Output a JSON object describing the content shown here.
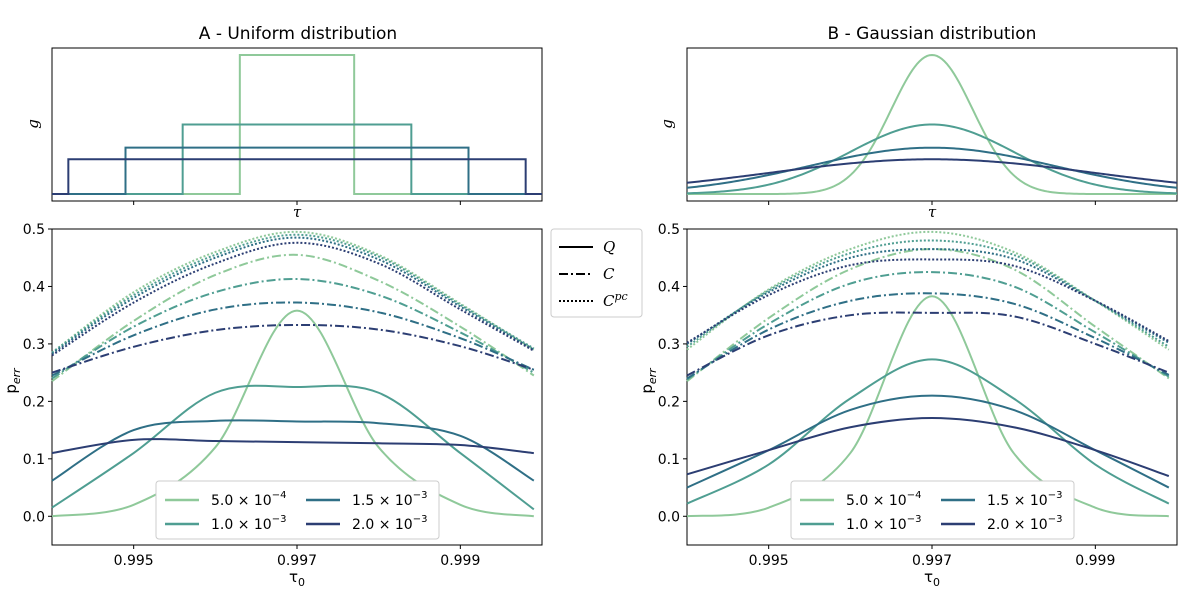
{
  "colors": {
    "w1": "#8fc99a",
    "w2": "#4f9e92",
    "w3": "#2f6f86",
    "w4": "#2c3e73"
  },
  "chart_data": [
    {
      "id": "A-top",
      "type": "line",
      "title": "A - Uniform distribution",
      "xlabel": "τ",
      "ylabel": "g",
      "xlim": [
        0.994,
        1.0
      ],
      "series": [
        {
          "name": "5.0e-4",
          "color_key": "w1",
          "shape": "uniform",
          "halfwidth": 0.0007,
          "height": 1.0
        },
        {
          "name": "1.0e-3",
          "color_key": "w2",
          "shape": "uniform",
          "halfwidth": 0.0014,
          "height": 0.5
        },
        {
          "name": "1.5e-3",
          "color_key": "w3",
          "shape": "uniform",
          "halfwidth": 0.0021,
          "height": 0.3333
        },
        {
          "name": "2.0e-3",
          "color_key": "w4",
          "shape": "uniform",
          "halfwidth": 0.0028,
          "height": 0.25
        }
      ]
    },
    {
      "id": "B-top",
      "type": "line",
      "title": "B - Gaussian distribution",
      "xlabel": "τ",
      "ylabel": "g",
      "xlim": [
        0.994,
        1.0
      ],
      "series": [
        {
          "name": "5.0e-4",
          "color_key": "w1",
          "shape": "gauss",
          "sigma": 0.0005,
          "height": 1.0
        },
        {
          "name": "1.0e-3",
          "color_key": "w2",
          "shape": "gauss",
          "sigma": 0.001,
          "height": 0.5
        },
        {
          "name": "1.5e-3",
          "color_key": "w3",
          "shape": "gauss",
          "sigma": 0.0015,
          "height": 0.3333
        },
        {
          "name": "2.0e-3",
          "color_key": "w4",
          "shape": "gauss",
          "sigma": 0.002,
          "height": 0.25
        }
      ]
    },
    {
      "id": "A-bottom",
      "type": "line",
      "xlabel": "τ₀",
      "ylabel": "p_err",
      "xlim": [
        0.994,
        1.0
      ],
      "ylim": [
        -0.05,
        0.5
      ],
      "xticks": [
        0.995,
        0.997,
        0.999
      ],
      "xtick_labels": [
        "0.995",
        "0.997",
        "0.999"
      ],
      "yticks": [
        0.0,
        0.1,
        0.2,
        0.3,
        0.4,
        0.5
      ],
      "ytick_labels": [
        "0.0",
        "0.1",
        "0.2",
        "0.3",
        "0.4",
        "0.5"
      ],
      "x": [
        0.994,
        0.995,
        0.996,
        0.997,
        0.998,
        0.999,
        0.9999
      ],
      "series": [
        {
          "name": "Q 5.0e-4",
          "color_key": "w1",
          "style": "solid",
          "values": [
            0.0,
            0.02,
            0.12,
            0.358,
            0.12,
            0.02,
            0.0
          ]
        },
        {
          "name": "Q 1.0e-3",
          "color_key": "w2",
          "style": "solid",
          "values": [
            0.015,
            0.11,
            0.215,
            0.225,
            0.215,
            0.11,
            0.012
          ]
        },
        {
          "name": "Q 1.5e-3",
          "color_key": "w3",
          "style": "solid",
          "values": [
            0.062,
            0.15,
            0.166,
            0.165,
            0.162,
            0.14,
            0.062
          ]
        },
        {
          "name": "Q 2.0e-3",
          "color_key": "w4",
          "style": "solid",
          "values": [
            0.11,
            0.133,
            0.131,
            0.129,
            0.127,
            0.124,
            0.11
          ]
        },
        {
          "name": "C 5.0e-4",
          "color_key": "w1",
          "style": "dashdot",
          "values": [
            0.235,
            0.34,
            0.42,
            0.455,
            0.41,
            0.33,
            0.245
          ]
        },
        {
          "name": "C 1.0e-3",
          "color_key": "w2",
          "style": "dashdot",
          "values": [
            0.24,
            0.33,
            0.39,
            0.413,
            0.385,
            0.32,
            0.25
          ]
        },
        {
          "name": "C 1.5e-3",
          "color_key": "w3",
          "style": "dashdot",
          "values": [
            0.245,
            0.315,
            0.36,
            0.372,
            0.355,
            0.31,
            0.255
          ]
        },
        {
          "name": "C 2.0e-3",
          "color_key": "w4",
          "style": "dashdot",
          "values": [
            0.25,
            0.295,
            0.324,
            0.333,
            0.325,
            0.296,
            0.255
          ]
        },
        {
          "name": "Cpc 5.0e-4",
          "color_key": "w1",
          "style": "dotted",
          "values": [
            0.285,
            0.39,
            0.46,
            0.495,
            0.455,
            0.37,
            0.29
          ]
        },
        {
          "name": "Cpc 1.0e-3",
          "color_key": "w2",
          "style": "dotted",
          "values": [
            0.285,
            0.385,
            0.455,
            0.49,
            0.452,
            0.368,
            0.292
          ]
        },
        {
          "name": "Cpc 1.5e-3",
          "color_key": "w3",
          "style": "dotted",
          "values": [
            0.283,
            0.38,
            0.45,
            0.485,
            0.447,
            0.365,
            0.29
          ]
        },
        {
          "name": "Cpc 2.0e-3",
          "color_key": "w4",
          "style": "dotted",
          "values": [
            0.28,
            0.372,
            0.44,
            0.476,
            0.44,
            0.36,
            0.288
          ]
        }
      ]
    },
    {
      "id": "B-bottom",
      "type": "line",
      "xlabel": "τ₀",
      "ylabel": "p_err",
      "xlim": [
        0.994,
        1.0
      ],
      "ylim": [
        -0.05,
        0.5
      ],
      "xticks": [
        0.995,
        0.997,
        0.999
      ],
      "xtick_labels": [
        "0.995",
        "0.997",
        "0.999"
      ],
      "yticks": [
        0.0,
        0.1,
        0.2,
        0.3,
        0.4,
        0.5
      ],
      "ytick_labels": [
        "0.0",
        "0.1",
        "0.2",
        "0.3",
        "0.4",
        "0.5"
      ],
      "x": [
        0.994,
        0.995,
        0.996,
        0.997,
        0.998,
        0.999,
        0.9999
      ],
      "series": [
        {
          "name": "Q 5.0e-4",
          "color_key": "w1",
          "style": "solid",
          "values": [
            0.0,
            0.015,
            0.11,
            0.383,
            0.11,
            0.015,
            0.0
          ]
        },
        {
          "name": "Q 1.0e-3",
          "color_key": "w2",
          "style": "solid",
          "values": [
            0.022,
            0.09,
            0.205,
            0.273,
            0.205,
            0.09,
            0.022
          ]
        },
        {
          "name": "Q 1.5e-3",
          "color_key": "w3",
          "style": "solid",
          "values": [
            0.05,
            0.115,
            0.185,
            0.21,
            0.185,
            0.115,
            0.05
          ]
        },
        {
          "name": "Q 2.0e-3",
          "color_key": "w4",
          "style": "solid",
          "values": [
            0.073,
            0.115,
            0.155,
            0.171,
            0.155,
            0.115,
            0.07
          ]
        },
        {
          "name": "C 5.0e-4",
          "color_key": "w1",
          "style": "dashdot",
          "values": [
            0.235,
            0.345,
            0.43,
            0.465,
            0.43,
            0.33,
            0.24
          ]
        },
        {
          "name": "C 1.0e-3",
          "color_key": "w2",
          "style": "dashdot",
          "values": [
            0.238,
            0.335,
            0.405,
            0.425,
            0.4,
            0.32,
            0.243
          ]
        },
        {
          "name": "C 1.5e-3",
          "color_key": "w3",
          "style": "dashdot",
          "values": [
            0.24,
            0.325,
            0.375,
            0.388,
            0.37,
            0.31,
            0.246
          ]
        },
        {
          "name": "C 2.0e-3",
          "color_key": "w4",
          "style": "dashdot",
          "values": [
            0.245,
            0.315,
            0.35,
            0.354,
            0.348,
            0.3,
            0.25
          ]
        },
        {
          "name": "Cpc 5.0e-4",
          "color_key": "w1",
          "style": "dotted",
          "values": [
            0.29,
            0.395,
            0.465,
            0.495,
            0.46,
            0.375,
            0.29
          ]
        },
        {
          "name": "Cpc 1.0e-3",
          "color_key": "w2",
          "style": "dotted",
          "values": [
            0.295,
            0.393,
            0.458,
            0.48,
            0.455,
            0.375,
            0.295
          ]
        },
        {
          "name": "Cpc 1.5e-3",
          "color_key": "w3",
          "style": "dotted",
          "values": [
            0.3,
            0.39,
            0.45,
            0.465,
            0.448,
            0.375,
            0.302
          ]
        },
        {
          "name": "Cpc 2.0e-3",
          "color_key": "w4",
          "style": "dotted",
          "values": [
            0.302,
            0.385,
            0.437,
            0.447,
            0.436,
            0.375,
            0.305
          ]
        }
      ]
    }
  ],
  "legend_style": {
    "entries": [
      {
        "label": "Q",
        "style": "solid"
      },
      {
        "label": "C",
        "style": "dashdot"
      },
      {
        "label": "C",
        "sup": "pc",
        "style": "dotted"
      }
    ]
  },
  "legend_width": {
    "entries": [
      {
        "mantissa": "5.0 × 10",
        "exp": "−4",
        "color_key": "w1"
      },
      {
        "mantissa": "1.5 × 10",
        "exp": "−3",
        "color_key": "w3"
      },
      {
        "mantissa": "1.0 × 10",
        "exp": "−3",
        "color_key": "w2"
      },
      {
        "mantissa": "2.0 × 10",
        "exp": "−3",
        "color_key": "w4"
      }
    ]
  }
}
